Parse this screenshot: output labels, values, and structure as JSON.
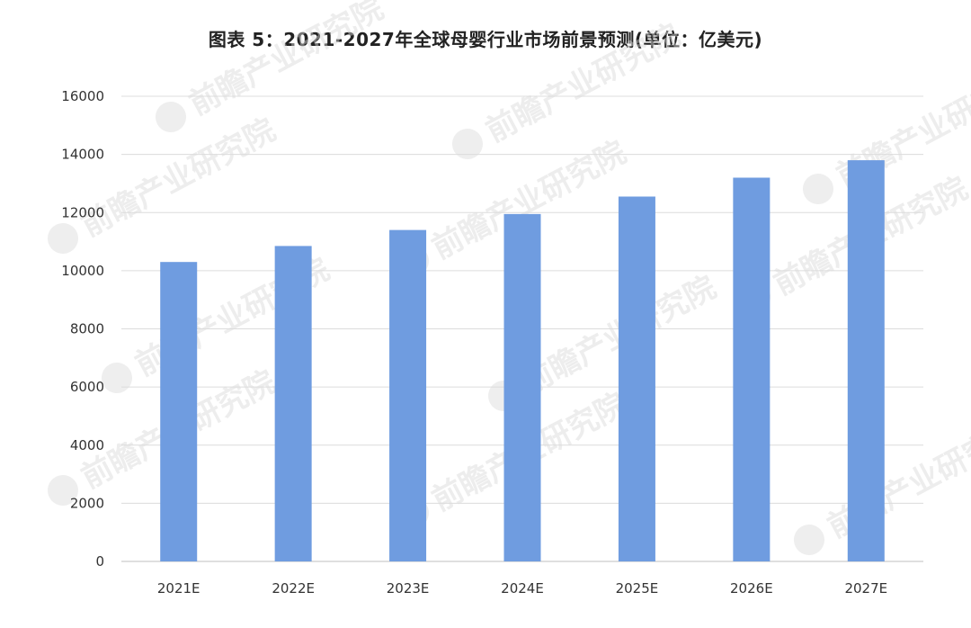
{
  "chart_data": {
    "type": "bar",
    "title": "图表 5：2021-2027年全球母婴行业市场前景预测(单位：亿美元)",
    "categories": [
      "2021E",
      "2022E",
      "2023E",
      "2024E",
      "2025E",
      "2026E",
      "2027E"
    ],
    "series": [
      {
        "values": [
          10300,
          10850,
          11400,
          11950,
          12550,
          13200,
          13800
        ],
        "color": "#6f9ce0"
      }
    ],
    "ylim": [
      0,
      16000
    ],
    "yticks": [
      0,
      2000,
      4000,
      6000,
      8000,
      10000,
      12000,
      14000,
      16000
    ],
    "xlabel": "",
    "ylabel": "",
    "grid": true,
    "legend": "none"
  },
  "watermark": {
    "text": "前瞻产业研究院"
  }
}
